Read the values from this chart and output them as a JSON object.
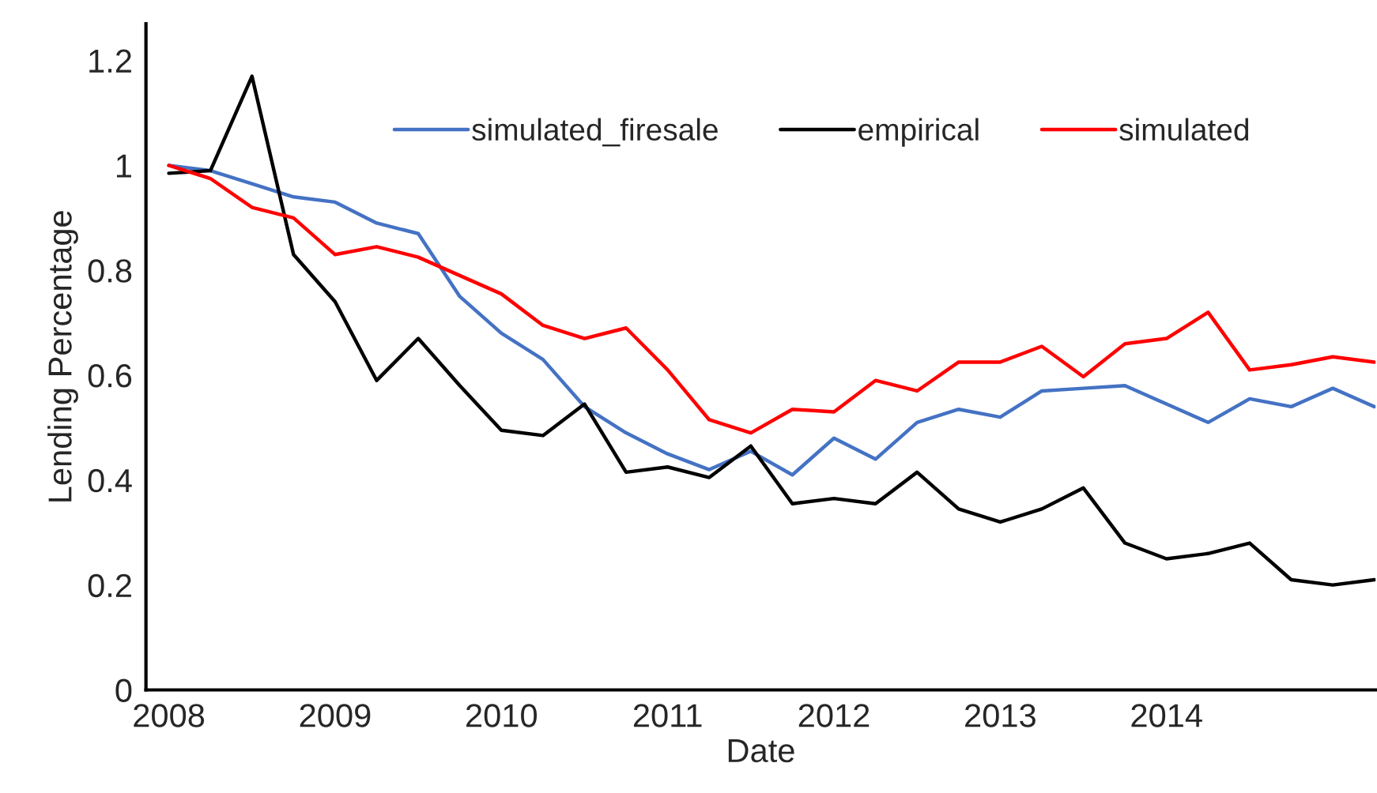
{
  "chart_data": {
    "type": "line",
    "xlabel": "Date",
    "ylabel": "Lending Percentage",
    "categories": [
      "2008",
      null,
      null,
      null,
      "2009",
      null,
      null,
      null,
      "2010",
      null,
      null,
      null,
      "2011",
      null,
      null,
      null,
      "2012",
      null,
      null,
      null,
      "2013",
      null,
      null,
      null,
      "2014",
      null,
      null,
      null,
      null,
      null
    ],
    "series": [
      {
        "name": "simulated_firesale",
        "color": "#4472c4",
        "values": [
          1.0,
          0.99,
          0.965,
          0.94,
          0.93,
          0.89,
          0.87,
          0.75,
          0.68,
          0.63,
          0.54,
          0.49,
          0.45,
          0.42,
          0.455,
          0.41,
          0.48,
          0.44,
          0.51,
          0.535,
          0.52,
          0.57,
          0.575,
          0.58,
          0.545,
          0.51,
          0.555,
          0.54,
          0.575,
          0.54
        ]
      },
      {
        "name": "empirical",
        "color": "#000000",
        "values": [
          0.985,
          0.99,
          1.17,
          0.83,
          0.74,
          0.59,
          0.67,
          0.58,
          0.495,
          0.485,
          0.545,
          0.415,
          0.425,
          0.405,
          0.465,
          0.355,
          0.365,
          0.355,
          0.415,
          0.345,
          0.32,
          0.345,
          0.385,
          0.28,
          0.25,
          0.26,
          0.28,
          0.21,
          0.2,
          0.21
        ]
      },
      {
        "name": "simulated",
        "color": "#ff0000",
        "values": [
          1.0,
          0.975,
          0.92,
          0.9,
          0.83,
          0.845,
          0.825,
          0.79,
          0.755,
          0.695,
          0.67,
          0.69,
          0.61,
          0.515,
          0.49,
          0.535,
          0.53,
          0.59,
          0.57,
          0.625,
          0.625,
          0.655,
          0.597,
          0.66,
          0.67,
          0.72,
          0.61,
          0.62,
          0.635,
          0.625
        ]
      }
    ],
    "ylim": [
      0,
      1.27
    ],
    "yticks": [
      0,
      0.2,
      0.4,
      0.6,
      0.8,
      1,
      1.2
    ],
    "legend": "top",
    "grid": false
  }
}
